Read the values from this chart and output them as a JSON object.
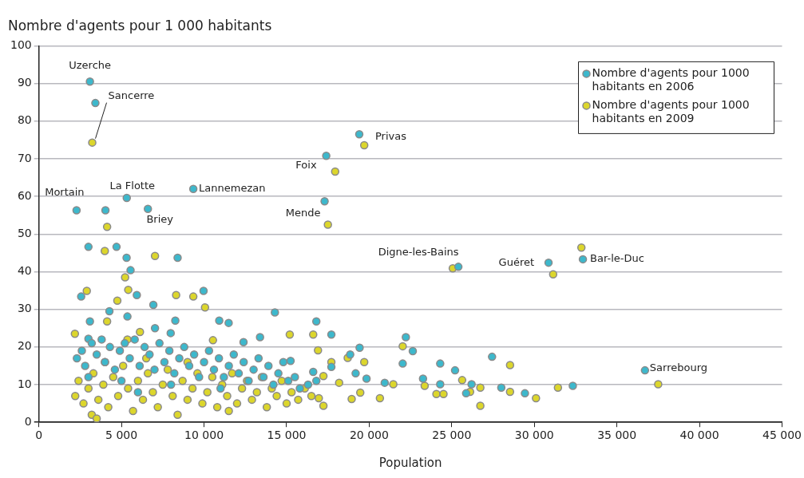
{
  "chart_data": {
    "type": "scatter",
    "title": "Nombre d'agents pour 1 000 habitants",
    "xlabel": "Population",
    "xlim": [
      0,
      45000
    ],
    "xticks": [
      0,
      {
        "value": 5000,
        "label": "5 000"
      },
      {
        "value": 10000,
        "label": "10 000"
      },
      {
        "value": 15000,
        "label": "15 000"
      },
      {
        "value": 20000,
        "label": "20 000"
      },
      {
        "value": 25000,
        "label": "25 000"
      },
      {
        "value": 30000,
        "label": "30 000"
      },
      {
        "value": 35000,
        "label": "35 000"
      },
      {
        "value": 40000,
        "label": "40 000"
      },
      {
        "value": 45000,
        "label": "45 000"
      }
    ],
    "ylim": [
      0,
      100
    ],
    "yticks": [
      0,
      10,
      20,
      30,
      40,
      50,
      60,
      70,
      80,
      90,
      100
    ],
    "grid": "y",
    "legend": "top right",
    "marker": "circle",
    "series": [
      {
        "name": "Nombre d'agents pour 1000 habitants en 2006",
        "color": "#3db8cc",
        "x": [
          3090,
          3420,
          2280,
          4030,
          5320,
          6600,
          9350,
          19400,
          17400,
          17300,
          25400,
          30860,
          32940,
          36700,
          3000,
          4700,
          5310,
          8400,
          5550,
          5930,
          2560,
          6930,
          9970,
          10920,
          11490,
          14290,
          4270,
          5360,
          3090,
          8260,
          3000,
          13390,
          7030,
          7980,
          12390,
          16800,
          17710,
          19420,
          22220,
          22640,
          22030,
          24300,
          25200,
          27440,
          28000,
          29430,
          20940,
          23260,
          26200,
          25870,
          24300,
          19840,
          16610,
          17710,
          18850,
          19180,
          15240,
          32330,
          2300,
          2600,
          2800,
          3200,
          3500,
          3800,
          4000,
          4300,
          4600,
          4900,
          5200,
          5500,
          5800,
          6100,
          6400,
          6700,
          7000,
          7300,
          7600,
          7900,
          8200,
          8500,
          8800,
          9100,
          9400,
          9700,
          10000,
          10300,
          10600,
          10900,
          11200,
          11500,
          11800,
          12100,
          12400,
          12700,
          13000,
          13300,
          13600,
          13900,
          14200,
          14500,
          14800,
          15100,
          15500,
          15800,
          16300,
          3000,
          5000,
          8000,
          11000,
          6000,
          16800
        ],
        "values": [
          90.5,
          84.8,
          56.3,
          56.3,
          59.6,
          56.7,
          62,
          76.5,
          70.8,
          58.7,
          41.3,
          42.4,
          43.3,
          13.8,
          46.6,
          46.6,
          43.7,
          43.7,
          40.4,
          33.8,
          33.4,
          31.2,
          34.9,
          27.0,
          26.4,
          29.2,
          29.5,
          28.1,
          26.8,
          27.0,
          22.2,
          22.6,
          25.0,
          23.7,
          21.3,
          26.8,
          23.3,
          19.8,
          22.6,
          18.9,
          15.6,
          15.6,
          13.8,
          17.4,
          9.2,
          7.7,
          10.5,
          11.6,
          10.1,
          7.7,
          10.1,
          11.6,
          13.4,
          14.7,
          18.0,
          13.0,
          16.3,
          9.7,
          17,
          19,
          15,
          21,
          18,
          22,
          16,
          20,
          14,
          19,
          21,
          17,
          22,
          15,
          20,
          18,
          14,
          21,
          16,
          19,
          13,
          17,
          20,
          15,
          18,
          12,
          16,
          19,
          14,
          17,
          12,
          15,
          18,
          13,
          16,
          11,
          14,
          17,
          12,
          15,
          10,
          13,
          16,
          11,
          12,
          9,
          10,
          12,
          11,
          10,
          9,
          8,
          11
        ]
      },
      {
        "name": "Nombre d'agents pour 1000 habitants en 2009",
        "color": "#dcd62c",
        "x": [
          3230,
          4130,
          19700,
          17940,
          17500,
          25060,
          31140,
          32850,
          37500,
          3990,
          7030,
          5220,
          5410,
          2900,
          4750,
          8310,
          9350,
          10060,
          4130,
          2180,
          10540,
          6120,
          5360,
          15190,
          16610,
          16900,
          19700,
          22030,
          17710,
          25630,
          28530,
          28530,
          26730,
          17230,
          21460,
          23360,
          24070,
          24500,
          26730,
          26110,
          19460,
          20650,
          17230,
          18700,
          18940,
          18180,
          16950,
          30100,
          31430,
          2200,
          2400,
          2700,
          3000,
          3200,
          3300,
          3600,
          3900,
          4200,
          4500,
          4800,
          5100,
          5400,
          5700,
          6000,
          6300,
          6600,
          6900,
          7200,
          7500,
          7800,
          8100,
          8400,
          8700,
          9000,
          9300,
          9600,
          9900,
          10200,
          10500,
          10800,
          11100,
          11400,
          11700,
          12000,
          12300,
          12600,
          12900,
          13200,
          13500,
          13800,
          14100,
          14400,
          14700,
          15000,
          15300,
          15700,
          16100,
          16500,
          4000,
          6500,
          9000,
          3500,
          11500
        ],
        "values": [
          74.3,
          51.9,
          73.6,
          66.6,
          52.5,
          40.9,
          39.3,
          46.4,
          10.1,
          45.5,
          44.2,
          38.5,
          35.2,
          34.9,
          32.3,
          33.8,
          33.4,
          30.5,
          26.8,
          23.5,
          21.8,
          24.0,
          22.0,
          23.3,
          23.3,
          19.1,
          16.0,
          20.2,
          16.0,
          11.2,
          15.2,
          8.1,
          4.4,
          4.4,
          10.1,
          9.7,
          7.5,
          7.5,
          9.2,
          8.1,
          7.9,
          6.4,
          12.3,
          17.1,
          6.2,
          10.5,
          6.4,
          6.4,
          9.2,
          7,
          11,
          5,
          9,
          2,
          13,
          6,
          10,
          4,
          12,
          7,
          15,
          9,
          3,
          11,
          6,
          13,
          8,
          4,
          10,
          14,
          7,
          2,
          11,
          6,
          9,
          13,
          5,
          8,
          12,
          4,
          10,
          7,
          13,
          5,
          9,
          11,
          6,
          8,
          12,
          4,
          9,
          7,
          11,
          5,
          8,
          6,
          9,
          7,
          16,
          17,
          16,
          1,
          3
        ]
      }
    ],
    "annotations": [
      {
        "text": "Uzerche",
        "x": 3090,
        "y": 90.5
      },
      {
        "text": "Sancerre",
        "x": 3230,
        "y": 74.3
      },
      {
        "text": "Mortain",
        "x": 2280,
        "y": 56.3
      },
      {
        "text": "La Flotte",
        "x": 5320,
        "y": 59.6
      },
      {
        "text": "Briey",
        "x": 6600,
        "y": 56.7
      },
      {
        "text": "Lannemezan",
        "x": 9350,
        "y": 62
      },
      {
        "text": "Privas",
        "x": 19400,
        "y": 76.5
      },
      {
        "text": "Foix",
        "x": 17400,
        "y": 70.8
      },
      {
        "text": "Mende",
        "x": 17300,
        "y": 58.7
      },
      {
        "text": "Digne-les-Bains",
        "x": 25400,
        "y": 41.3
      },
      {
        "text": "Guéret",
        "x": 30860,
        "y": 42.4
      },
      {
        "text": "Bar-le-Duc",
        "x": 32940,
        "y": 43.3
      },
      {
        "text": "Sarrebourg",
        "x": 36700,
        "y": 13.8
      }
    ]
  }
}
